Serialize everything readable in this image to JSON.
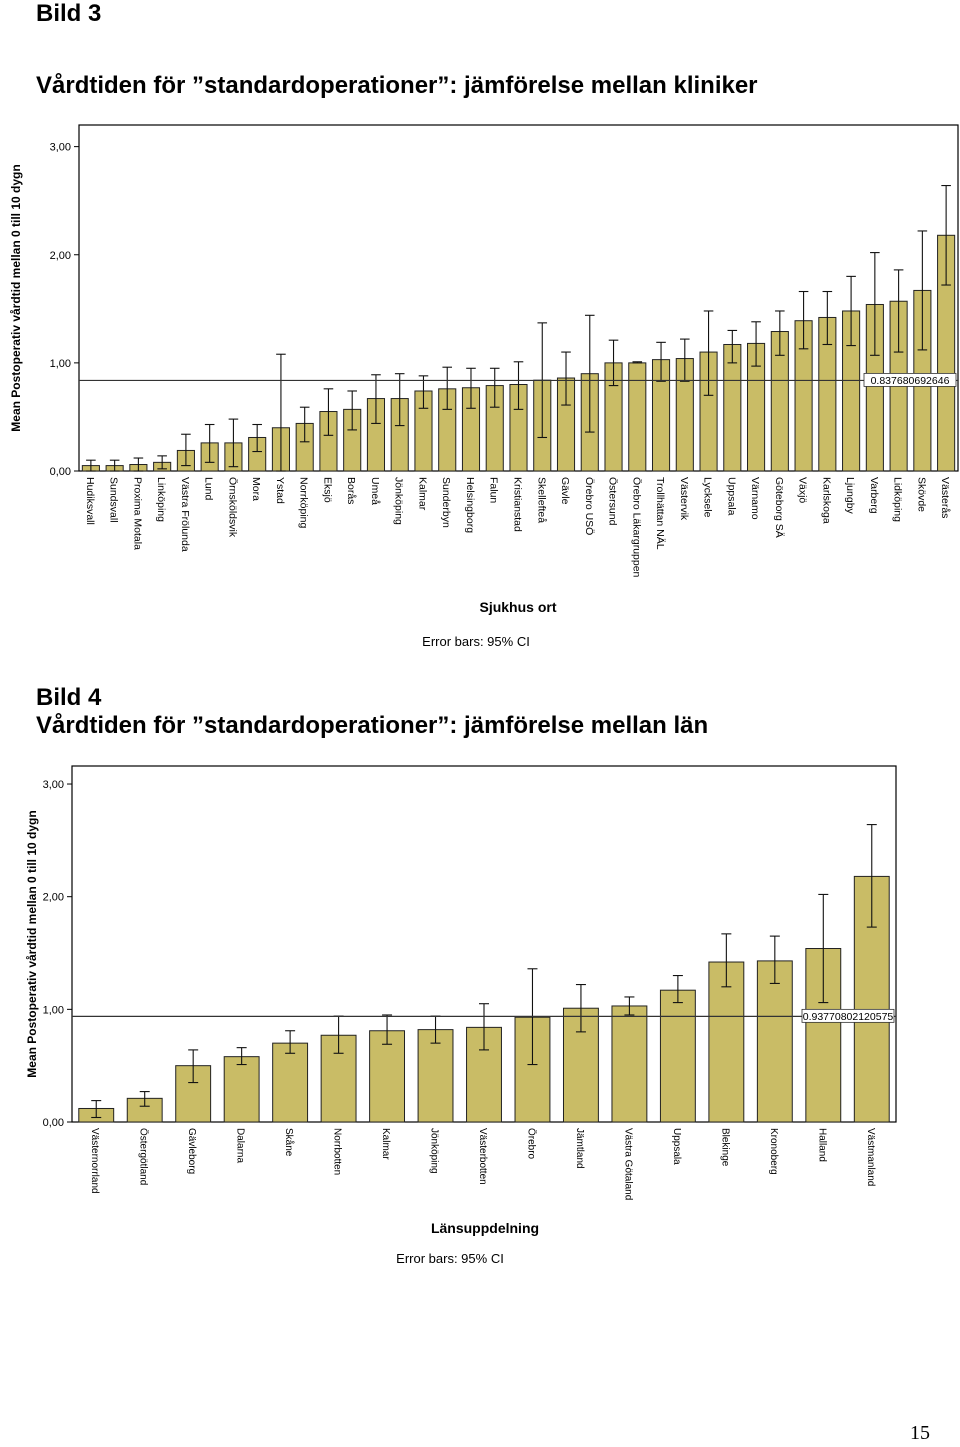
{
  "figures": [
    {
      "label": "Bild 3",
      "title": "Vårdtiden för ”standardoperationer”: jämförelse mellan kliniker"
    },
    {
      "label": "Bild 4",
      "title": "Vårdtiden för ”standardoperationer”: jämförelse mellan län"
    }
  ],
  "page_number": "15",
  "colors": {
    "bar_fill": "#c9bc66",
    "bar_stroke": "#222222",
    "plot_bg": "#ffffff",
    "frame": "#000000"
  },
  "chart_data": [
    {
      "type": "bar",
      "xlabel": "Sjukhus ort",
      "ylabel": "Mean Postoperativ vårdtid mellan 0 till 10 dygn",
      "error_note": "Error bars: 95% CI",
      "ylim": [
        0,
        3.2
      ],
      "yticks": [
        "0,00",
        "1,00",
        "2,00",
        "3,00"
      ],
      "ytick_values": [
        0,
        1,
        2,
        3
      ],
      "reference_line": {
        "value": 0.837680692646,
        "label": "0.837680692646"
      },
      "categories": [
        "Hudiksvall",
        "Sundsvall",
        "Proxima Motala",
        "Linköping",
        "Västra Frölunda",
        "Lund",
        "Örnsköldsvik",
        "Mora",
        "Ystad",
        "Norrköping",
        "Eksjö",
        "Borås",
        "Umeå",
        "Jönköping",
        "Kalmar",
        "Sunderbyn",
        "Helsingborg",
        "Falun",
        "Kristianstad",
        "Skellefteå",
        "Gävle",
        "Örebro USÖ",
        "Östersund",
        "Örebro Läkargruppen",
        "Trollhättan NÄL",
        "Västervik",
        "Lycksele",
        "Uppsala",
        "Värnamo",
        "Göteborg SÄ",
        "Växjö",
        "Karlskoga",
        "Ljungby",
        "Varberg",
        "Lidköping",
        "Skövde",
        "Västerås"
      ],
      "values": [
        0.05,
        0.05,
        0.06,
        0.08,
        0.19,
        0.26,
        0.26,
        0.31,
        0.4,
        0.44,
        0.55,
        0.57,
        0.67,
        0.67,
        0.74,
        0.76,
        0.77,
        0.79,
        0.8,
        0.84,
        0.86,
        0.9,
        1.0,
        1.0,
        1.03,
        1.04,
        1.1,
        1.17,
        1.18,
        1.29,
        1.39,
        1.42,
        1.48,
        1.54,
        1.57,
        1.67,
        2.18
      ],
      "ci_low": [
        0.0,
        0.0,
        0.0,
        0.02,
        0.05,
        0.08,
        0.04,
        0.18,
        0.0,
        0.27,
        0.33,
        0.38,
        0.44,
        0.42,
        0.58,
        0.57,
        0.58,
        0.59,
        0.57,
        0.31,
        0.61,
        0.36,
        0.79,
        1.0,
        0.83,
        0.83,
        0.7,
        1.0,
        0.97,
        1.07,
        1.13,
        1.17,
        1.16,
        1.07,
        1.1,
        1.12,
        1.72
      ],
      "ci_high": [
        0.1,
        0.1,
        0.12,
        0.14,
        0.34,
        0.43,
        0.48,
        0.43,
        1.08,
        0.59,
        0.76,
        0.74,
        0.89,
        0.9,
        0.88,
        0.96,
        0.95,
        0.95,
        1.01,
        1.37,
        1.1,
        1.44,
        1.21,
        1.01,
        1.19,
        1.22,
        1.48,
        1.3,
        1.38,
        1.48,
        1.66,
        1.66,
        1.8,
        2.02,
        1.86,
        2.22,
        2.64
      ]
    },
    {
      "type": "bar",
      "xlabel": "Länsuppdelning",
      "ylabel": "Mean Postoperativ vårdtid mellan 0 till 10 dygn",
      "error_note": "Error bars: 95% CI",
      "ylim": [
        0,
        3.16
      ],
      "yticks": [
        "0,00",
        "1,00",
        "2,00",
        "3,00"
      ],
      "ytick_values": [
        0,
        1,
        2,
        3
      ],
      "reference_line": {
        "value": 0.93770802120575,
        "label": "0.93770802120575"
      },
      "categories": [
        "Västernorrland",
        "Östergötland",
        "Gävleborg",
        "Dalarna",
        "Skåne",
        "Norrbotten",
        "Kalmar",
        "Jönköping",
        "Västerbotten",
        "Örebro",
        "Jämtland",
        "Västra Götaland",
        "Uppsala",
        "Blekinge",
        "Kronoberg",
        "Halland",
        "Västmanland"
      ],
      "values": [
        0.12,
        0.21,
        0.5,
        0.58,
        0.7,
        0.77,
        0.81,
        0.82,
        0.84,
        0.93,
        1.01,
        1.03,
        1.17,
        1.42,
        1.43,
        1.54,
        2.18
      ],
      "ci_low": [
        0.04,
        0.14,
        0.35,
        0.51,
        0.61,
        0.61,
        0.69,
        0.7,
        0.64,
        0.51,
        0.8,
        0.95,
        1.06,
        1.2,
        1.23,
        1.06,
        1.73
      ],
      "ci_high": [
        0.19,
        0.27,
        0.64,
        0.66,
        0.81,
        0.94,
        0.95,
        0.94,
        1.05,
        1.36,
        1.22,
        1.11,
        1.3,
        1.67,
        1.65,
        2.02,
        2.64
      ]
    }
  ]
}
